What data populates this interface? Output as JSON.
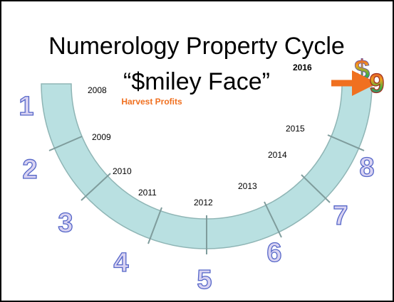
{
  "title": {
    "line1": "Numerology Property Cycle",
    "line2": "“$miley Face”"
  },
  "icon": "$",
  "harvest_label": "Harvest Profits",
  "years": [
    "2008",
    "2009",
    "2010",
    "2011",
    "2012",
    "2013",
    "2014",
    "2015",
    "2016"
  ],
  "numbers": [
    "1",
    "2",
    "3",
    "4",
    "5",
    "6",
    "7",
    "8",
    "9"
  ]
}
